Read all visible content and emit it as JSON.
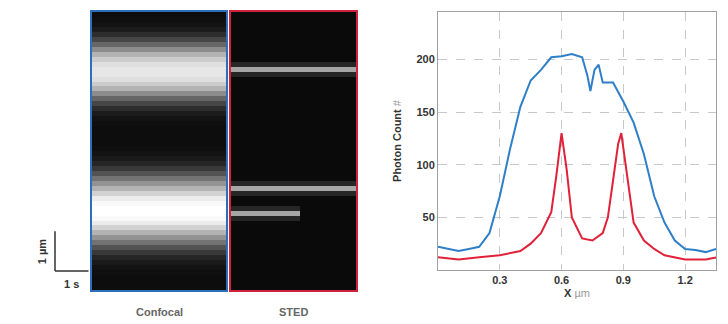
{
  "chart_data": [
    {
      "type": "heatmap",
      "label": "Confocal",
      "color": "#2f6fb8",
      "tick_labels": false,
      "xlim": [
        0,
        4
      ],
      "ylim": [
        0,
        7
      ],
      "zlim": [
        0,
        200
      ],
      "x_edges": [
        0,
        4
      ],
      "y_edges": [
        0,
        0.125,
        0.25,
        0.375,
        0.5,
        0.625,
        0.75,
        0.875,
        1,
        1.125,
        1.25,
        1.375,
        1.5,
        1.625,
        1.75,
        1.875,
        2,
        2.125,
        2.25,
        2.375,
        2.5,
        2.625,
        2.75,
        2.875,
        3,
        3.125,
        3.25,
        3.375,
        3.5,
        3.625,
        3.75,
        3.875,
        4,
        4.125,
        4.25,
        4.375,
        4.5,
        4.625,
        4.75,
        4.875,
        5,
        5.125,
        5.25,
        5.375,
        5.5,
        5.625,
        5.75,
        5.875,
        6,
        6.125,
        6.25,
        6.375,
        6.5,
        6.625,
        6.75,
        6.875,
        7
      ],
      "z": [
        [
          10
        ],
        [
          10
        ],
        [
          10
        ],
        [
          12
        ],
        [
          15
        ],
        [
          20
        ],
        [
          30
        ],
        [
          45
        ],
        [
          65
        ],
        [
          90
        ],
        [
          115
        ],
        [
          140
        ],
        [
          165
        ],
        [
          185
        ],
        [
          195
        ],
        [
          200
        ],
        [
          200
        ],
        [
          195
        ],
        [
          185
        ],
        [
          165
        ],
        [
          140
        ],
        [
          115
        ],
        [
          90
        ],
        [
          65
        ],
        [
          45
        ],
        [
          30
        ],
        [
          20
        ],
        [
          15
        ],
        [
          12
        ],
        [
          10
        ],
        [
          10
        ],
        [
          10
        ],
        [
          10
        ],
        [
          12
        ],
        [
          15
        ],
        [
          22
        ],
        [
          35
        ],
        [
          55
        ],
        [
          80
        ],
        [
          110
        ],
        [
          140
        ],
        [
          160
        ],
        [
          175
        ],
        [
          180
        ],
        [
          180
        ],
        [
          175
        ],
        [
          160
        ],
        [
          140
        ],
        [
          110
        ],
        [
          80
        ],
        [
          55
        ],
        [
          35
        ],
        [
          22
        ],
        [
          15
        ],
        [
          12
        ],
        [
          10
        ]
      ],
      "scale_bar": {
        "x": 1,
        "x_label": "1 s",
        "y": 1,
        "y_label": "1 µm"
      }
    },
    {
      "type": "heatmap",
      "label": "STED",
      "color": "#d0223c",
      "tick_labels": false,
      "xlim": [
        0,
        4
      ],
      "ylim": [
        0,
        7
      ],
      "zlim": [
        0,
        200
      ],
      "x_edges": [
        0,
        2.2,
        4
      ],
      "y_edges": [
        0,
        0.125,
        0.25,
        0.375,
        0.5,
        0.625,
        0.75,
        0.875,
        1,
        1.125,
        1.25,
        1.375,
        1.5,
        1.625,
        1.75,
        1.875,
        2,
        2.125,
        2.25,
        2.375,
        2.5,
        2.625,
        2.75,
        2.875,
        3,
        3.125,
        3.25,
        3.375,
        3.5,
        3.625,
        3.75,
        3.875,
        4,
        4.125,
        4.25,
        4.375,
        4.5,
        4.625,
        4.75,
        4.875,
        5,
        5.125,
        5.25,
        5.375,
        5.5,
        5.625,
        5.75,
        5.875,
        6,
        6.125,
        6.25,
        6.375,
        6.5,
        6.625,
        6.75,
        6.875,
        7
      ],
      "z": [
        [
          8,
          8
        ],
        [
          8,
          8
        ],
        [
          8,
          8
        ],
        [
          8,
          8
        ],
        [
          8,
          8
        ],
        [
          8,
          8
        ],
        [
          8,
          8
        ],
        [
          8,
          8
        ],
        [
          8,
          8
        ],
        [
          8,
          8
        ],
        [
          8,
          8
        ],
        [
          8,
          8
        ],
        [
          8,
          8
        ],
        [
          8,
          8
        ],
        [
          30,
          8
        ],
        [
          130,
          8
        ],
        [
          30,
          8
        ],
        [
          8,
          8
        ],
        [
          8,
          8
        ],
        [
          30,
          30
        ],
        [
          130,
          130
        ],
        [
          30,
          30
        ],
        [
          8,
          8
        ],
        [
          8,
          8
        ],
        [
          8,
          8
        ],
        [
          8,
          8
        ],
        [
          8,
          8
        ],
        [
          8,
          8
        ],
        [
          8,
          8
        ],
        [
          8,
          8
        ],
        [
          8,
          8
        ],
        [
          8,
          8
        ],
        [
          8,
          8
        ],
        [
          8,
          8
        ],
        [
          8,
          8
        ],
        [
          8,
          8
        ],
        [
          8,
          8
        ],
        [
          8,
          8
        ],
        [
          8,
          8
        ],
        [
          8,
          8
        ],
        [
          8,
          8
        ],
        [
          8,
          8
        ],
        [
          8,
          8
        ],
        [
          30,
          30
        ],
        [
          130,
          130
        ],
        [
          30,
          30
        ],
        [
          8,
          8
        ],
        [
          8,
          8
        ],
        [
          8,
          8
        ],
        [
          8,
          8
        ],
        [
          8,
          8
        ],
        [
          8,
          8
        ],
        [
          8,
          8
        ],
        [
          8,
          8
        ],
        [
          8,
          8
        ],
        [
          8,
          8
        ]
      ]
    },
    {
      "type": "line",
      "xlabel": "X µm",
      "ylabel": "Photon Count #",
      "xlim": [
        0,
        1.35
      ],
      "ylim": [
        0,
        245
      ],
      "xticks": [
        0.3,
        0.6,
        0.9,
        1.2
      ],
      "yticks": [
        50,
        100,
        150,
        200
      ],
      "grid": true,
      "series": [
        {
          "color": "#2f7ec8",
          "x": [
            0,
            0.05,
            0.1,
            0.15,
            0.2,
            0.25,
            0.3,
            0.35,
            0.4,
            0.45,
            0.5,
            0.55,
            0.6,
            0.65,
            0.7,
            0.725,
            0.74,
            0.76,
            0.78,
            0.8,
            0.85,
            0.9,
            0.95,
            1,
            1.05,
            1.1,
            1.15,
            1.2,
            1.25,
            1.3,
            1.35
          ],
          "values": [
            22,
            20,
            18,
            20,
            22,
            35,
            70,
            115,
            155,
            180,
            190,
            202,
            203,
            205,
            202,
            185,
            170,
            190,
            195,
            178,
            178,
            160,
            140,
            110,
            70,
            45,
            28,
            20,
            19,
            17,
            20
          ]
        },
        {
          "color": "#e0213a",
          "x": [
            0,
            0.1,
            0.2,
            0.3,
            0.4,
            0.45,
            0.5,
            0.55,
            0.575,
            0.6,
            0.625,
            0.65,
            0.7,
            0.75,
            0.8,
            0.825,
            0.85,
            0.875,
            0.89,
            0.91,
            0.95,
            1,
            1.05,
            1.1,
            1.15,
            1.2,
            1.3,
            1.35
          ],
          "values": [
            12,
            10,
            12,
            14,
            18,
            25,
            35,
            55,
            90,
            130,
            95,
            50,
            30,
            28,
            35,
            50,
            85,
            120,
            130,
            100,
            45,
            28,
            20,
            14,
            12,
            10,
            10,
            12
          ]
        }
      ]
    }
  ]
}
